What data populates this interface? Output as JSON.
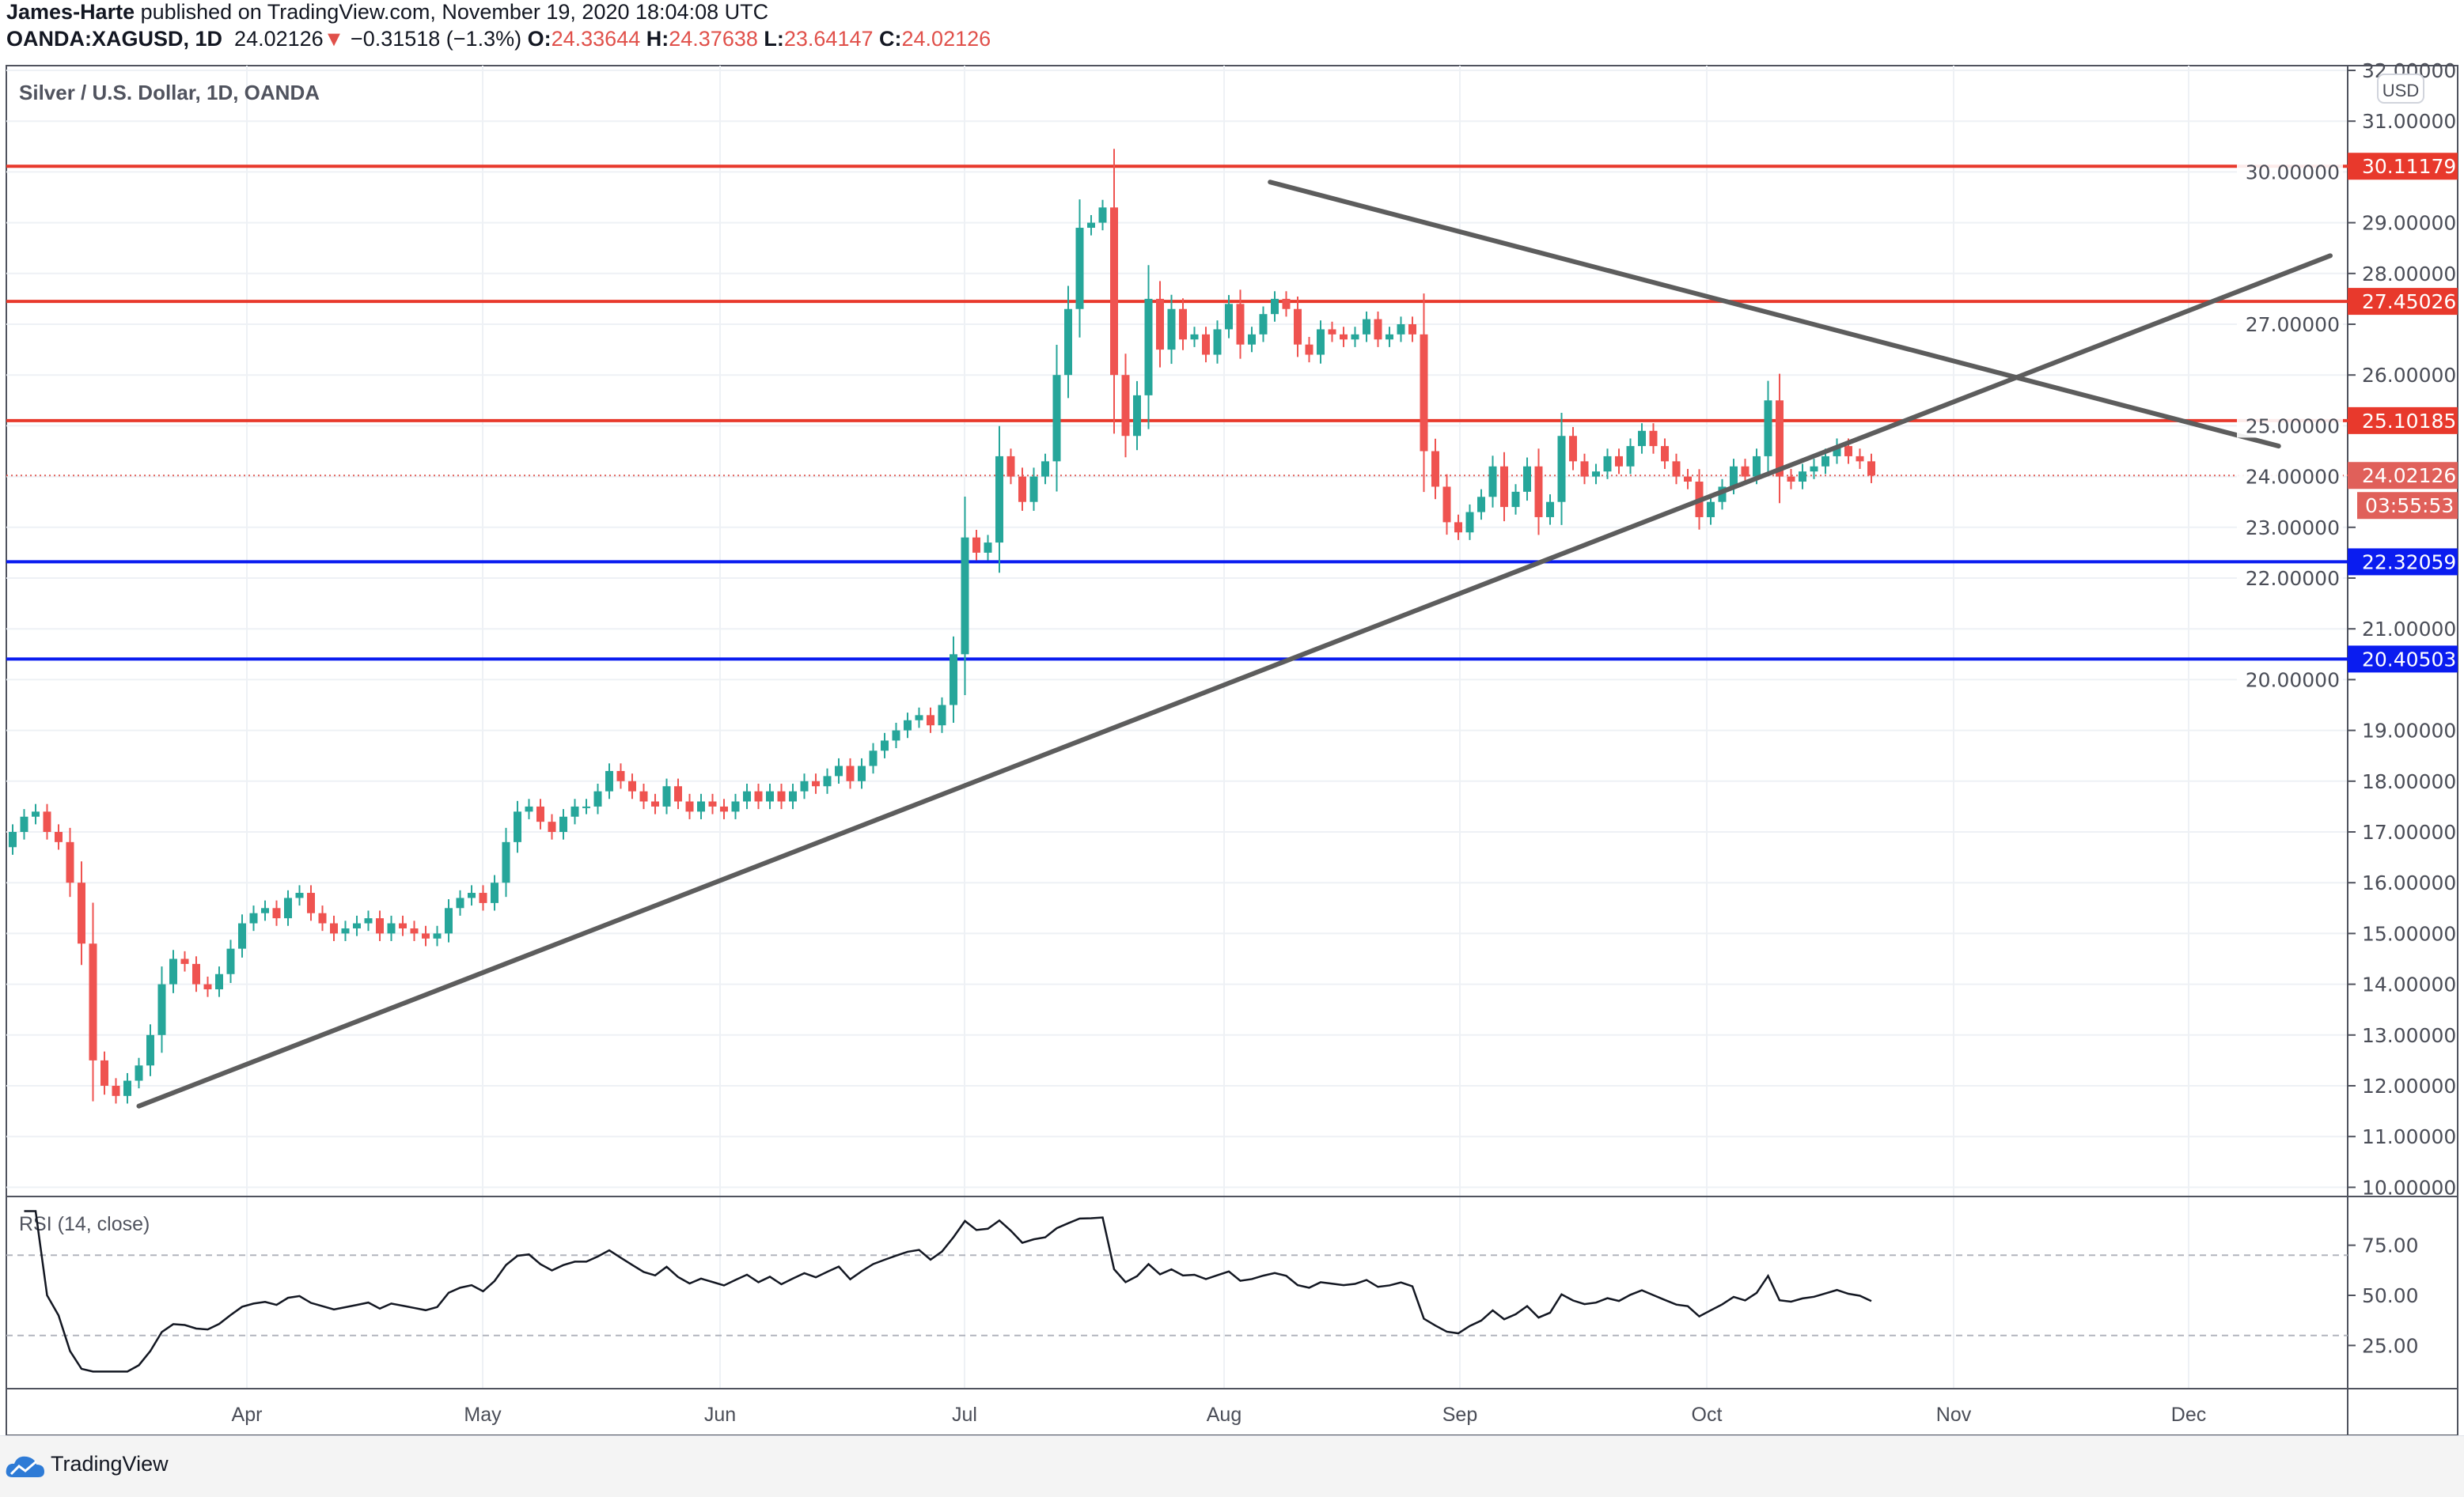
{
  "header": {
    "author": "James-Harte",
    "published": "published on TradingView.com, November 19, 2020 18:04:08 UTC",
    "symbol": "OANDA:XAGUSD, 1D",
    "last": "24.02126",
    "change": "−0.31518 (−1.3%)",
    "o_label": "O:",
    "o": "24.33644",
    "h_label": "H:",
    "h": "24.37638",
    "l_label": "L:",
    "l": "23.64147",
    "c_label": "C:",
    "c": "24.02126"
  },
  "footer": {
    "brand": "TradingView",
    "icon": "tradingview-cloud-icon"
  },
  "colors": {
    "up": "#26a69a",
    "down": "#ef5350",
    "resistance": "#e8392c",
    "support": "#0a1cf0",
    "trend": "#5d5d5d",
    "last": "#e0605a"
  },
  "chart_data": {
    "type": "candlestick",
    "title": "Silver / U.S. Dollar, 1D, OANDA",
    "currency": "USD",
    "ylim": [
      10,
      32
    ],
    "yticks": [
      "10.00000",
      "11.00000",
      "12.00000",
      "13.00000",
      "14.00000",
      "15.00000",
      "16.00000",
      "17.00000",
      "18.00000",
      "19.00000",
      "20.00000",
      "21.00000",
      "22.00000",
      "23.00000",
      "24.00000",
      "25.00000",
      "26.00000",
      "27.00000",
      "28.00000",
      "29.00000",
      "30.00000",
      "31.00000",
      "32.00000"
    ],
    "months": [
      "Apr",
      "May",
      "Jun",
      "Jul",
      "Aug",
      "Sep",
      "Oct",
      "Nov",
      "Dec"
    ],
    "closes": [
      17.0,
      17.3,
      17.4,
      17.0,
      16.8,
      16.0,
      14.8,
      12.5,
      12.0,
      11.8,
      12.1,
      12.4,
      13.0,
      14.0,
      14.5,
      14.4,
      14.0,
      13.9,
      14.2,
      14.7,
      15.2,
      15.4,
      15.5,
      15.3,
      15.7,
      15.8,
      15.4,
      15.2,
      15.0,
      15.1,
      15.2,
      15.3,
      15.0,
      15.2,
      15.1,
      15.0,
      14.9,
      15.0,
      15.5,
      15.7,
      15.8,
      15.6,
      16.0,
      16.8,
      17.4,
      17.5,
      17.2,
      17.0,
      17.3,
      17.5,
      17.5,
      17.8,
      18.2,
      18.0,
      17.8,
      17.6,
      17.5,
      17.9,
      17.6,
      17.4,
      17.6,
      17.5,
      17.4,
      17.6,
      17.8,
      17.6,
      17.8,
      17.6,
      17.8,
      18.0,
      17.9,
      18.1,
      18.3,
      18.0,
      18.3,
      18.6,
      18.8,
      19.0,
      19.2,
      19.3,
      19.1,
      19.5,
      20.5,
      22.8,
      22.5,
      22.7,
      24.4,
      24.0,
      23.5,
      24.0,
      24.3,
      26.0,
      27.3,
      28.9,
      29.0,
      29.3,
      26.0,
      24.8,
      25.6,
      27.5,
      26.5,
      27.3,
      26.7,
      26.8,
      26.4,
      26.9,
      27.4,
      26.6,
      26.8,
      27.2,
      27.5,
      27.3,
      26.6,
      26.4,
      26.9,
      26.8,
      26.7,
      26.8,
      27.1,
      26.7,
      26.8,
      27.0,
      26.8,
      24.5,
      23.8,
      23.1,
      22.9,
      23.3,
      23.6,
      24.2,
      23.4,
      23.7,
      24.2,
      23.2,
      23.5,
      24.8,
      24.3,
      24.0,
      24.1,
      24.4,
      24.2,
      24.6,
      24.9,
      24.6,
      24.3,
      24.0,
      23.9,
      23.2,
      23.5,
      23.8,
      24.2,
      24.0,
      24.4,
      25.5,
      24.0,
      23.9,
      24.1,
      24.2,
      24.4,
      24.6,
      24.4,
      24.3,
      24.02
    ],
    "hlines": [
      {
        "price": 30.11179,
        "label": "30.11179",
        "kind": "resistance"
      },
      {
        "price": 27.45026,
        "label": "27.45026",
        "kind": "resistance"
      },
      {
        "price": 25.10185,
        "label": "25.10185",
        "kind": "resistance"
      },
      {
        "price": 22.32059,
        "label": "22.32059",
        "kind": "support"
      },
      {
        "price": 20.40503,
        "label": "20.40503",
        "kind": "support"
      }
    ],
    "last_price": {
      "price": 24.02126,
      "label": "24.02126",
      "countdown": "03:55:53"
    },
    "trendlines": [
      {
        "name": "ascending-trendline",
        "from": {
          "bar": 11,
          "price": 11.6
        },
        "to": {
          "bar": 202,
          "price": 28.35
        }
      },
      {
        "name": "descending-trendline",
        "from": {
          "bar": 109.6,
          "price": 29.8
        },
        "to": {
          "bar": 197.5,
          "price": 24.6
        }
      }
    ],
    "rsi": {
      "label": "RSI (14, close)",
      "period": 14,
      "ylim": [
        10,
        90
      ],
      "ticks": [
        "75.00",
        "50.00",
        "25.00"
      ],
      "bands": [
        70,
        30
      ]
    }
  }
}
